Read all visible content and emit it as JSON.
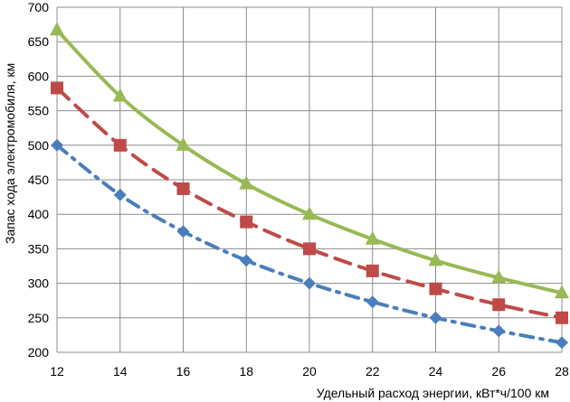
{
  "chart_data": {
    "type": "line",
    "title": "",
    "xlabel": "Удельный расход энергии, кВт*ч/100 км",
    "ylabel": "Запас хода электромобиля, км",
    "x": [
      12,
      14,
      16,
      18,
      20,
      22,
      24,
      26,
      28
    ],
    "x_ticks": [
      "12",
      "14",
      "16",
      "18",
      "20",
      "22",
      "24",
      "26",
      "28"
    ],
    "y_ticks": [
      "200",
      "250",
      "300",
      "350",
      "400",
      "450",
      "500",
      "550",
      "600",
      "650",
      "700"
    ],
    "xlim": [
      12,
      28
    ],
    "ylim": [
      200,
      700
    ],
    "grid": true,
    "legend": "none",
    "series": [
      {
        "values": [
          500,
          428,
          375,
          333,
          300,
          273,
          250,
          231,
          214
        ],
        "color": "#4a7ebb",
        "marker": "diamond",
        "line_style": "dash-dot"
      },
      {
        "values": [
          583,
          500,
          437,
          389,
          350,
          318,
          292,
          269,
          250
        ],
        "color": "#be4b48",
        "marker": "square",
        "line_style": "dashed"
      },
      {
        "values": [
          667,
          571,
          500,
          444,
          400,
          364,
          333,
          308,
          286
        ],
        "color": "#98b954",
        "marker": "triangle",
        "line_style": "solid"
      }
    ]
  }
}
